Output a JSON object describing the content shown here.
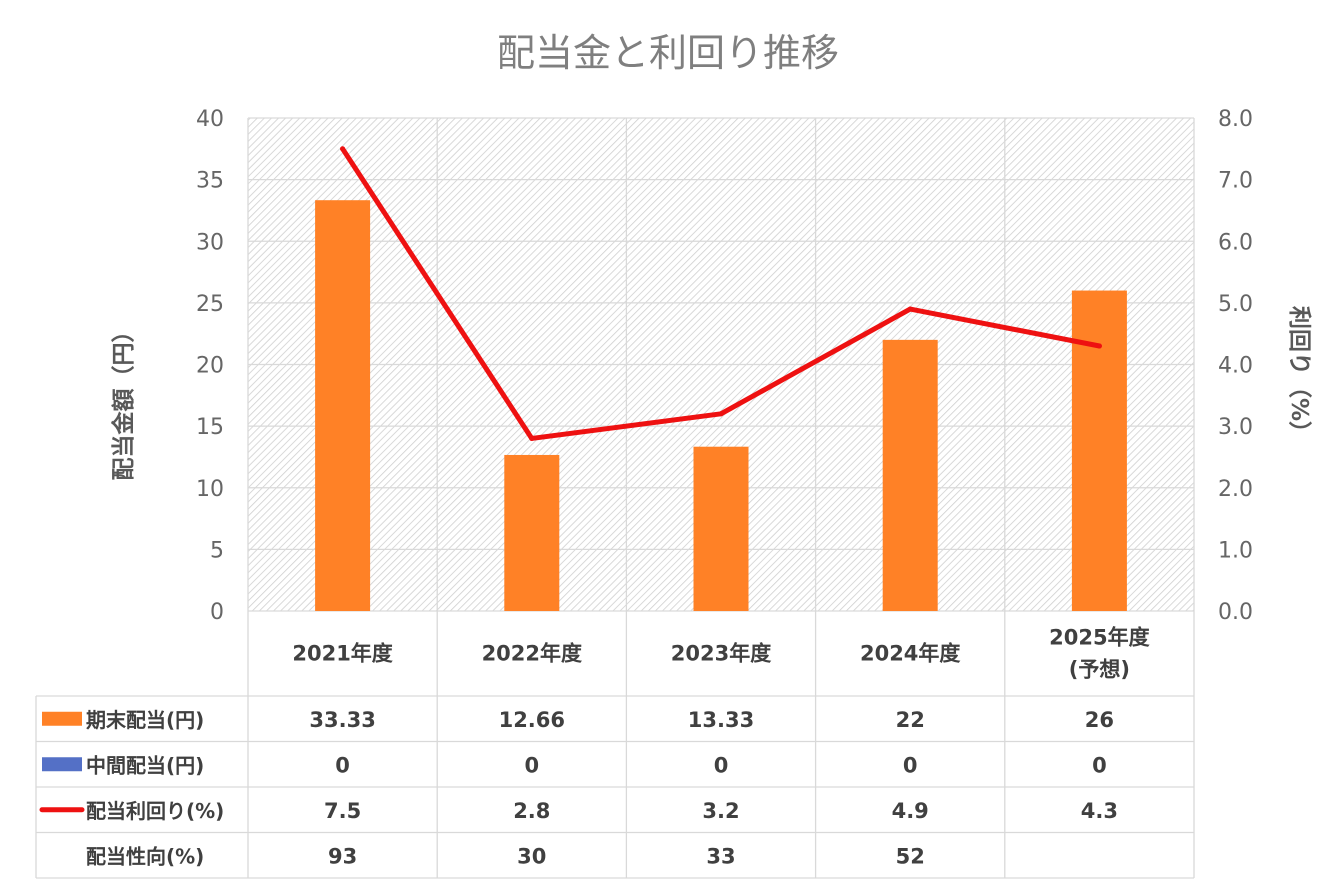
{
  "colors": {
    "bar": "#ff8126",
    "interim": "#5470c6",
    "line": "#ee1111",
    "grid": "#d9d9d9",
    "text": "#404040"
  },
  "chart_data": {
    "type": "bar",
    "title": "配当金と利回り推移",
    "ylabel": "配当金額（円）",
    "y2label": "利回り（%）",
    "ylim": [
      0,
      40
    ],
    "y2lim": [
      0,
      8
    ],
    "yticks": [
      "0",
      "5",
      "10",
      "15",
      "20",
      "25",
      "30",
      "35",
      "40"
    ],
    "y2ticks": [
      "0.0",
      "1.0",
      "2.0",
      "3.0",
      "4.0",
      "5.0",
      "6.0",
      "7.0",
      "8.0"
    ],
    "grid": true,
    "categories": [
      [
        "2021年度"
      ],
      [
        "2022年度"
      ],
      [
        "2023年度"
      ],
      [
        "2024年度"
      ],
      [
        "2025年度",
        "(予想)"
      ]
    ],
    "series": [
      {
        "name": "期末配当(円)",
        "type": "bar",
        "axis": "left",
        "values": [
          33.33,
          12.66,
          13.33,
          22,
          26
        ],
        "labels": [
          "33.33",
          "12.66",
          "13.33",
          "22",
          "26"
        ]
      },
      {
        "name": "中間配当(円)",
        "type": "bar",
        "axis": "left",
        "values": [
          0,
          0,
          0,
          0,
          0
        ],
        "labels": [
          "0",
          "0",
          "0",
          "0",
          "0"
        ]
      },
      {
        "name": "配当利回り(%)",
        "type": "line",
        "axis": "right",
        "values": [
          7.5,
          2.8,
          3.2,
          4.9,
          4.3
        ],
        "labels": [
          "7.5",
          "2.8",
          "3.2",
          "4.9",
          "4.3"
        ]
      }
    ],
    "table_extra_rows": [
      {
        "name": "配当性向(%)",
        "labels": [
          "93",
          "30",
          "33",
          "52",
          ""
        ]
      }
    ]
  }
}
